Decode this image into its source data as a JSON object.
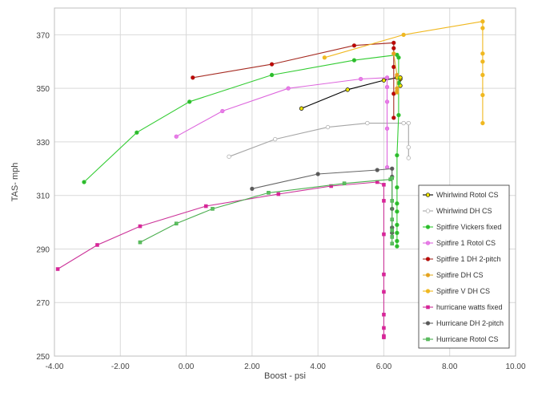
{
  "chart_data": {
    "type": "scatter",
    "xlabel": "Boost - psi",
    "ylabel": "TAS- mph",
    "xlim": [
      -4,
      10
    ],
    "ylim": [
      250,
      380
    ],
    "xticks": [
      -4,
      -2,
      0,
      2,
      4,
      6,
      8,
      10
    ],
    "xtick_labels": [
      "-4.00",
      "-2.00",
      "0.00",
      "2.00",
      "4.00",
      "6.00",
      "8.00",
      "10.00"
    ],
    "yticks": [
      250,
      270,
      290,
      310,
      330,
      350,
      370
    ],
    "ytick_labels": [
      "250",
      "270",
      "290",
      "310",
      "330",
      "350",
      "370"
    ],
    "grid": true,
    "legend_position": "lower-right",
    "series": [
      {
        "name": "Whirlwind Rotol CS",
        "color": "#000000",
        "marker_fill": "#f2e600",
        "marker": "circle",
        "x": [
          3.5,
          4.9,
          6.0,
          6.4,
          6.5,
          6.5,
          6.5
        ],
        "y": [
          342.5,
          349.5,
          353.0,
          354.0,
          353.5,
          351.0,
          354.0
        ]
      },
      {
        "name": "Whirlwind DH CS",
        "color": "#a6a6a6",
        "marker_fill": "#ffffff",
        "marker": "circle",
        "x": [
          1.3,
          2.7,
          4.3,
          5.5,
          6.6,
          6.75,
          6.75,
          6.75
        ],
        "y": [
          324.5,
          331.0,
          335.5,
          337.0,
          337.0,
          337.0,
          328.0,
          324.0
        ]
      },
      {
        "name": "Spitfire Vickers fixed",
        "color": "#33cc33",
        "marker_fill": "#2eb82e",
        "marker": "circle",
        "x": [
          -3.1,
          -1.5,
          0.1,
          2.6,
          5.1,
          6.4,
          6.45,
          6.45,
          6.45,
          6.4,
          6.4,
          6.4,
          6.4,
          6.4,
          6.4,
          6.4,
          6.4
        ],
        "y": [
          315.0,
          333.5,
          345.0,
          355.0,
          360.5,
          362.5,
          361.5,
          352.0,
          340.0,
          325.0,
          313.0,
          307.0,
          304.0,
          299.0,
          296.0,
          293.0,
          291.0
        ]
      },
      {
        "name": "Spitfire 1 Rotol CS",
        "color": "#dd66dd",
        "marker_fill": "#e87de8",
        "marker": "circle",
        "x": [
          -0.3,
          1.1,
          3.1,
          5.3,
          6.1,
          6.1,
          6.1,
          6.1,
          6.1
        ],
        "y": [
          332.0,
          341.5,
          350.0,
          353.5,
          354.0,
          350.5,
          345.0,
          335.0,
          320.5
        ]
      },
      {
        "name": "Spitfire 1 DH 2-pitch",
        "color": "#a62b22",
        "marker_fill": "#c00000",
        "marker": "circle",
        "x": [
          0.2,
          2.6,
          5.1,
          6.3,
          6.3,
          6.3,
          6.3,
          6.3
        ],
        "y": [
          354.0,
          359.0,
          366.0,
          367.0,
          365.0,
          358.0,
          348.0,
          339.0
        ]
      },
      {
        "name": "Spitfire DH CS",
        "color": "#e0b030",
        "marker_fill": "#e8a020",
        "marker": "circle",
        "x": [
          6.3,
          6.4,
          6.4,
          6.4,
          6.4
        ],
        "y": [
          363.0,
          355.0,
          350.0,
          349.0,
          348.5
        ]
      },
      {
        "name": "Spitfire V DH CS",
        "color": "#f0b820",
        "marker_fill": "#f0b820",
        "marker": "circle",
        "x": [
          4.2,
          6.6,
          9.0,
          9.0,
          9.0,
          9.0,
          9.0,
          9.0,
          9.0
        ],
        "y": [
          361.5,
          370.0,
          375.0,
          372.5,
          363.0,
          360.0,
          355.0,
          347.5,
          337.0
        ]
      },
      {
        "name": "hurricane watts fixed",
        "color": "#cc3399",
        "marker_fill": "#dd2299",
        "marker": "square",
        "x": [
          -3.9,
          -2.7,
          -1.4,
          0.6,
          2.8,
          4.4,
          5.8,
          6.0,
          6.0,
          6.0,
          6.0,
          6.0,
          6.0,
          6.0,
          6.0,
          6.0
        ],
        "y": [
          282.5,
          291.5,
          298.5,
          306.0,
          310.5,
          313.5,
          315.0,
          314.0,
          308.0,
          295.5,
          280.5,
          274.0,
          265.5,
          260.5,
          257.5,
          257.0
        ]
      },
      {
        "name": "Hurricane DH 2-pitch",
        "color": "#666666",
        "marker_fill": "#595959",
        "marker": "circle",
        "x": [
          2.0,
          4.0,
          5.8,
          6.25,
          6.25,
          6.25,
          6.25,
          6.25
        ],
        "y": [
          312.5,
          318.0,
          319.5,
          320.0,
          317.0,
          305.0,
          298.0,
          296.0
        ]
      },
      {
        "name": "Hurricane Rotol CS",
        "color": "#4caf50",
        "marker_fill": "#5cbf60",
        "marker": "square",
        "x": [
          -1.4,
          -0.3,
          0.8,
          2.5,
          4.8,
          6.2,
          6.25,
          6.25,
          6.25,
          6.25,
          6.25,
          6.25
        ],
        "y": [
          292.5,
          299.5,
          305.0,
          311.0,
          314.5,
          316.0,
          316.5,
          308.0,
          301.0,
          297.0,
          294.5,
          292.0
        ]
      }
    ]
  }
}
